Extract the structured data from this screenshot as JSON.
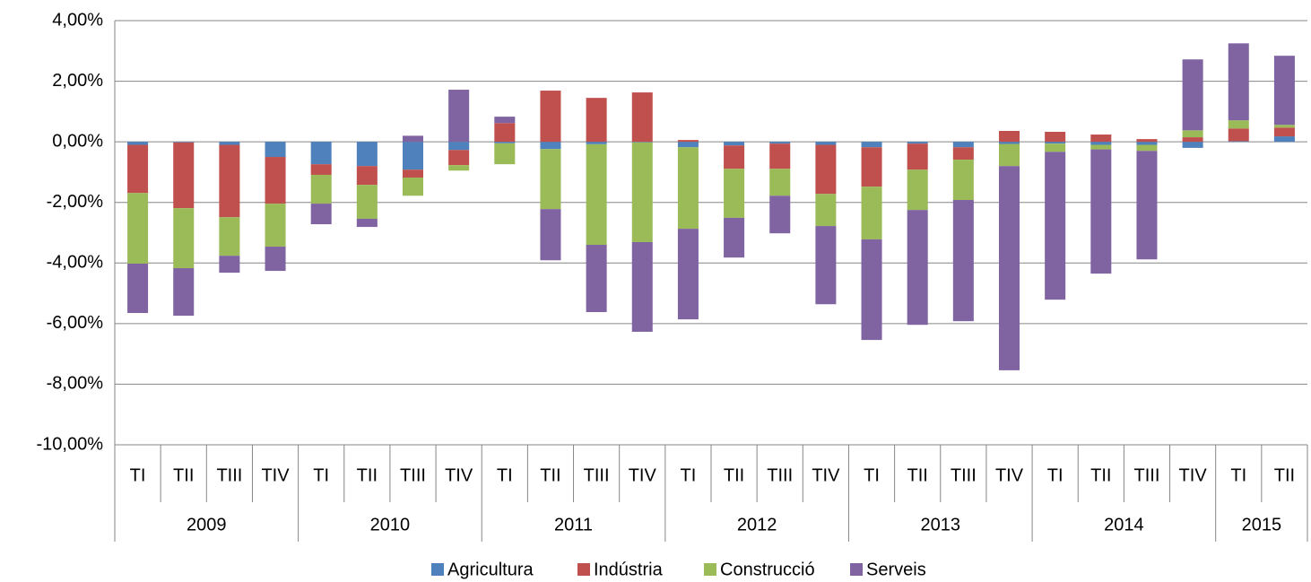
{
  "chart_data": {
    "type": "bar",
    "stacked": true,
    "groups": [
      {
        "label": "2009",
        "categories": [
          "TI",
          "TII",
          "TIII",
          "TIV"
        ]
      },
      {
        "label": "2010",
        "categories": [
          "TI",
          "TII",
          "TIII",
          "TIV"
        ]
      },
      {
        "label": "2011",
        "categories": [
          "TI",
          "TII",
          "TIII",
          "TIV"
        ]
      },
      {
        "label": "2012",
        "categories": [
          "TI",
          "TII",
          "TIII",
          "TIV"
        ]
      },
      {
        "label": "2013",
        "categories": [
          "TI",
          "TII",
          "TIII",
          "TIV"
        ]
      },
      {
        "label": "2014",
        "categories": [
          "TI",
          "TII",
          "TIII",
          "TIV"
        ]
      },
      {
        "label": "2015",
        "categories": [
          "TI",
          "TII"
        ]
      }
    ],
    "series": [
      {
        "name": "Agricultura",
        "color": "#4f81bd",
        "values": [
          -0.1,
          -0.02,
          -0.1,
          -0.5,
          -0.74,
          -0.8,
          -0.92,
          -0.27,
          -0.05,
          -0.24,
          -0.08,
          -0.02,
          -0.18,
          -0.12,
          -0.06,
          -0.1,
          -0.18,
          -0.06,
          -0.18,
          -0.07,
          -0.06,
          -0.1,
          -0.1,
          -0.2,
          0.02,
          0.18
        ]
      },
      {
        "name": "Indústria",
        "color": "#c0504d",
        "values": [
          -1.59,
          -2.17,
          -2.39,
          -1.54,
          -0.35,
          -0.62,
          -0.26,
          -0.5,
          0.62,
          1.69,
          1.45,
          1.63,
          0.06,
          -0.77,
          -0.83,
          -1.62,
          -1.3,
          -0.86,
          -0.41,
          0.36,
          0.33,
          0.24,
          0.09,
          0.15,
          0.42,
          0.29
        ]
      },
      {
        "name": "Construcció",
        "color": "#9bbb59",
        "values": [
          -2.33,
          -1.98,
          -1.27,
          -1.42,
          -0.95,
          -1.12,
          -0.6,
          -0.18,
          -0.69,
          -1.98,
          -3.32,
          -3.29,
          -2.69,
          -1.62,
          -0.89,
          -1.06,
          -1.74,
          -1.33,
          -1.33,
          -0.73,
          -0.27,
          -0.15,
          -0.2,
          0.23,
          0.27,
          0.09
        ]
      },
      {
        "name": "Serveis",
        "color": "#8064a2",
        "values": [
          -1.63,
          -1.57,
          -0.56,
          -0.8,
          -0.68,
          -0.27,
          0.2,
          1.72,
          0.21,
          -1.69,
          -2.22,
          -2.96,
          -2.99,
          -1.31,
          -1.24,
          -2.58,
          -3.32,
          -3.79,
          -4.0,
          -6.74,
          -4.88,
          -4.1,
          -3.58,
          2.34,
          2.54,
          2.28
        ]
      }
    ],
    "ylim": [
      -10,
      4
    ],
    "yticks": [
      {
        "value": -10,
        "label": "-10,00%"
      },
      {
        "value": -8,
        "label": "-8,00%"
      },
      {
        "value": -6,
        "label": "-6,00%"
      },
      {
        "value": -4,
        "label": "-4,00%"
      },
      {
        "value": -2,
        "label": "-2,00%"
      },
      {
        "value": 0,
        "label": "0,00%"
      },
      {
        "value": 2,
        "label": "2,00%"
      },
      {
        "value": 4,
        "label": "4,00%"
      }
    ],
    "grid": true,
    "legend": "bottom"
  }
}
